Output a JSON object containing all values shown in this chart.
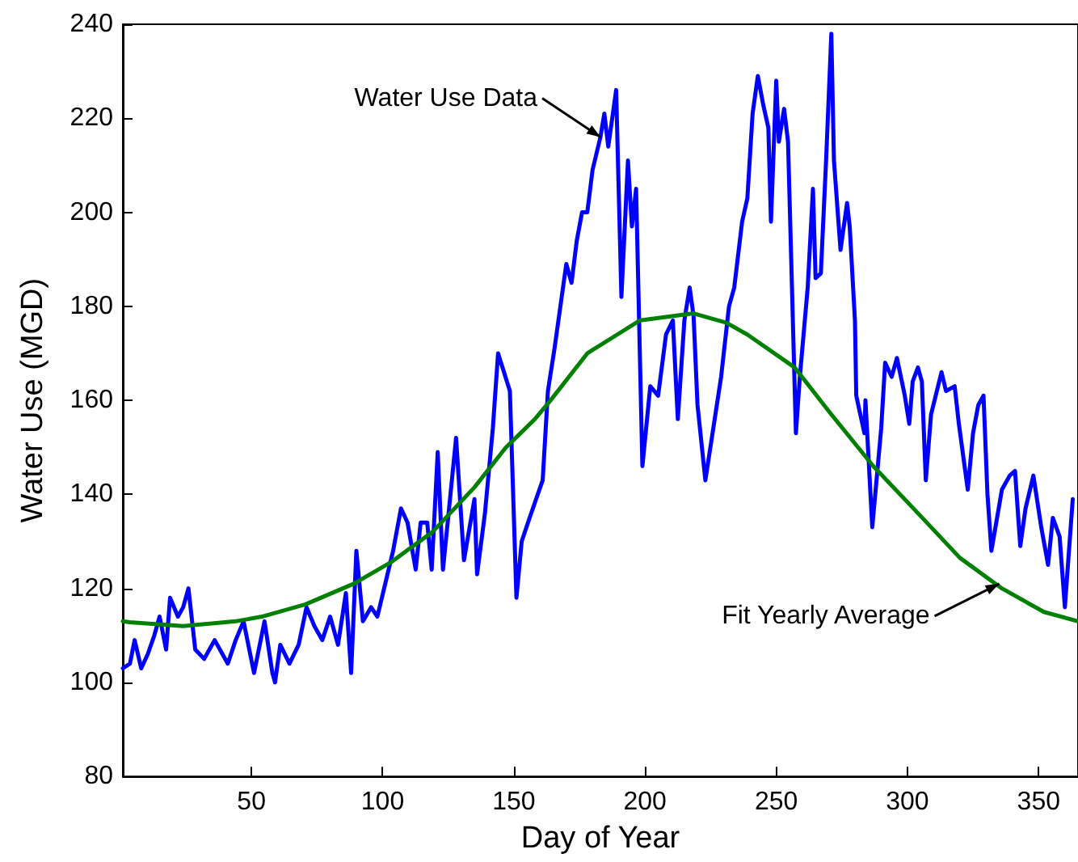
{
  "chart_data": {
    "type": "line",
    "xlabel": "Day of Year",
    "ylabel": "Water Use (MGD)",
    "xlim": [
      1,
      365
    ],
    "ylim": [
      80,
      240
    ],
    "xticks": [
      50,
      100,
      150,
      200,
      250,
      300,
      350
    ],
    "yticks": [
      80,
      100,
      120,
      140,
      160,
      180,
      200,
      220,
      240
    ],
    "marker": "none",
    "line_style": "solid",
    "series": [
      {
        "color": "#0000ff",
        "x": [
          1,
          3.7,
          5.5,
          8,
          10.5,
          13,
          15,
          17.5,
          19,
          22,
          24,
          26,
          28.6,
          32,
          36,
          41,
          44,
          47,
          51,
          55,
          58,
          59,
          61,
          64.5,
          68,
          71,
          74,
          77,
          80,
          83,
          86,
          88,
          90,
          92.5,
          95.6,
          98,
          101,
          104,
          107,
          109.5,
          112.6,
          114.5,
          117,
          118.7,
          121,
          123,
          128,
          131,
          135,
          136,
          139,
          142,
          144,
          148.5,
          151,
          153,
          156,
          161,
          163,
          165.5,
          170,
          172,
          174,
          176,
          178,
          180,
          183,
          184.5,
          186,
          187.5,
          189,
          191,
          193.5,
          195,
          196.6,
          199,
          202,
          205,
          208,
          210.6,
          212.5,
          215,
          217,
          218.5,
          220,
          223,
          229,
          232,
          234,
          237,
          239,
          241,
          243,
          245,
          247,
          248,
          250,
          251,
          253,
          254.5,
          257.5,
          259,
          262,
          264,
          265,
          267,
          269,
          271,
          272,
          274.5,
          277,
          278,
          280,
          280.5,
          283.6,
          284,
          286.6,
          290,
          291.5,
          294,
          296,
          299,
          300.7,
          302,
          304,
          305.5,
          307,
          309,
          313,
          314.7,
          318,
          319.6,
          323,
          325,
          327,
          329,
          330.5,
          332,
          336,
          339,
          341,
          343,
          345,
          348,
          351,
          353.6,
          355.4,
          358,
          360,
          363
        ],
        "values": [
          103,
          104,
          109,
          103,
          106,
          110,
          114,
          107,
          118,
          114,
          116,
          120,
          107,
          105,
          109,
          104,
          109,
          113,
          102,
          113,
          102,
          100,
          108,
          104,
          108,
          116,
          112,
          109,
          114,
          108,
          119,
          102,
          128,
          113,
          116,
          114,
          121,
          128,
          137,
          134,
          124,
          134,
          134,
          124,
          149,
          124,
          152,
          126,
          139,
          123,
          136,
          154,
          170,
          162,
          118,
          130,
          135,
          143,
          162,
          171,
          189,
          185,
          194,
          200,
          200,
          209,
          216,
          221,
          214,
          220,
          226,
          182,
          211,
          197,
          205,
          146,
          163,
          161,
          174,
          177,
          156,
          177,
          184,
          178,
          159,
          143,
          165,
          180,
          184,
          198,
          203,
          221,
          229,
          223,
          218,
          198,
          228,
          215,
          222,
          215,
          153,
          165,
          184,
          205,
          186,
          187,
          211,
          238,
          211,
          192,
          202,
          197,
          177,
          161,
          153,
          160,
          133,
          154,
          168,
          165,
          169,
          161,
          155,
          164,
          167,
          164,
          143,
          157,
          166,
          162,
          163,
          155,
          141,
          153,
          159,
          161,
          140,
          128,
          141,
          144,
          145,
          129,
          137,
          144,
          133,
          125,
          135,
          131,
          116,
          139
        ]
      },
      {
        "color": "#008000",
        "x": [
          1,
          3.6,
          24,
          44,
          54,
          70.6,
          89,
          103,
          119,
          135,
          147,
          158,
          164,
          178,
          198,
          218.5,
          231,
          239,
          257,
          271,
          287,
          304,
          320,
          336,
          352,
          365
        ],
        "values": [
          113,
          112.8,
          112,
          113,
          114,
          116.6,
          121,
          125.5,
          132,
          141.5,
          150,
          156,
          160,
          170,
          177,
          178.5,
          176.5,
          174,
          167,
          157,
          146,
          136,
          126.5,
          120,
          115,
          113
        ]
      }
    ],
    "annotations": [
      {
        "text": "Water Use Data",
        "x": 183,
        "y": 216
      },
      {
        "text": "Fit Yearly Average",
        "x": 335,
        "y": 121
      }
    ]
  }
}
